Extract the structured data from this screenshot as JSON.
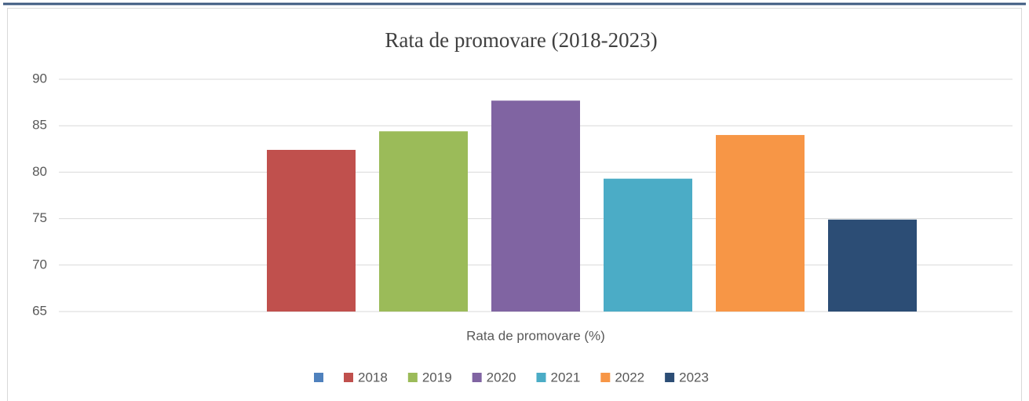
{
  "chart_data": {
    "type": "bar",
    "title": "Rata de promovare (2018-2023)",
    "categories": [
      "Rata de promovare (%)"
    ],
    "series": [
      {
        "name": null,
        "color": "#4f81bd",
        "values": [
          null
        ]
      },
      {
        "name": "2018",
        "color": "#c0504d",
        "values": [
          82.4
        ]
      },
      {
        "name": "2019",
        "color": "#9bbb59",
        "values": [
          84.4
        ]
      },
      {
        "name": "2020",
        "color": "#8064a2",
        "values": [
          87.7
        ]
      },
      {
        "name": "2021",
        "color": "#4bacc6",
        "values": [
          79.3
        ]
      },
      {
        "name": "2022",
        "color": "#f79646",
        "values": [
          84.0
        ]
      },
      {
        "name": "2023",
        "color": "#2c4d75",
        "values": [
          74.9
        ]
      }
    ],
    "ylim": [
      65,
      90
    ],
    "yticks": [
      65,
      70,
      75,
      80,
      85,
      90
    ],
    "grid": true,
    "legend": "bottom"
  }
}
